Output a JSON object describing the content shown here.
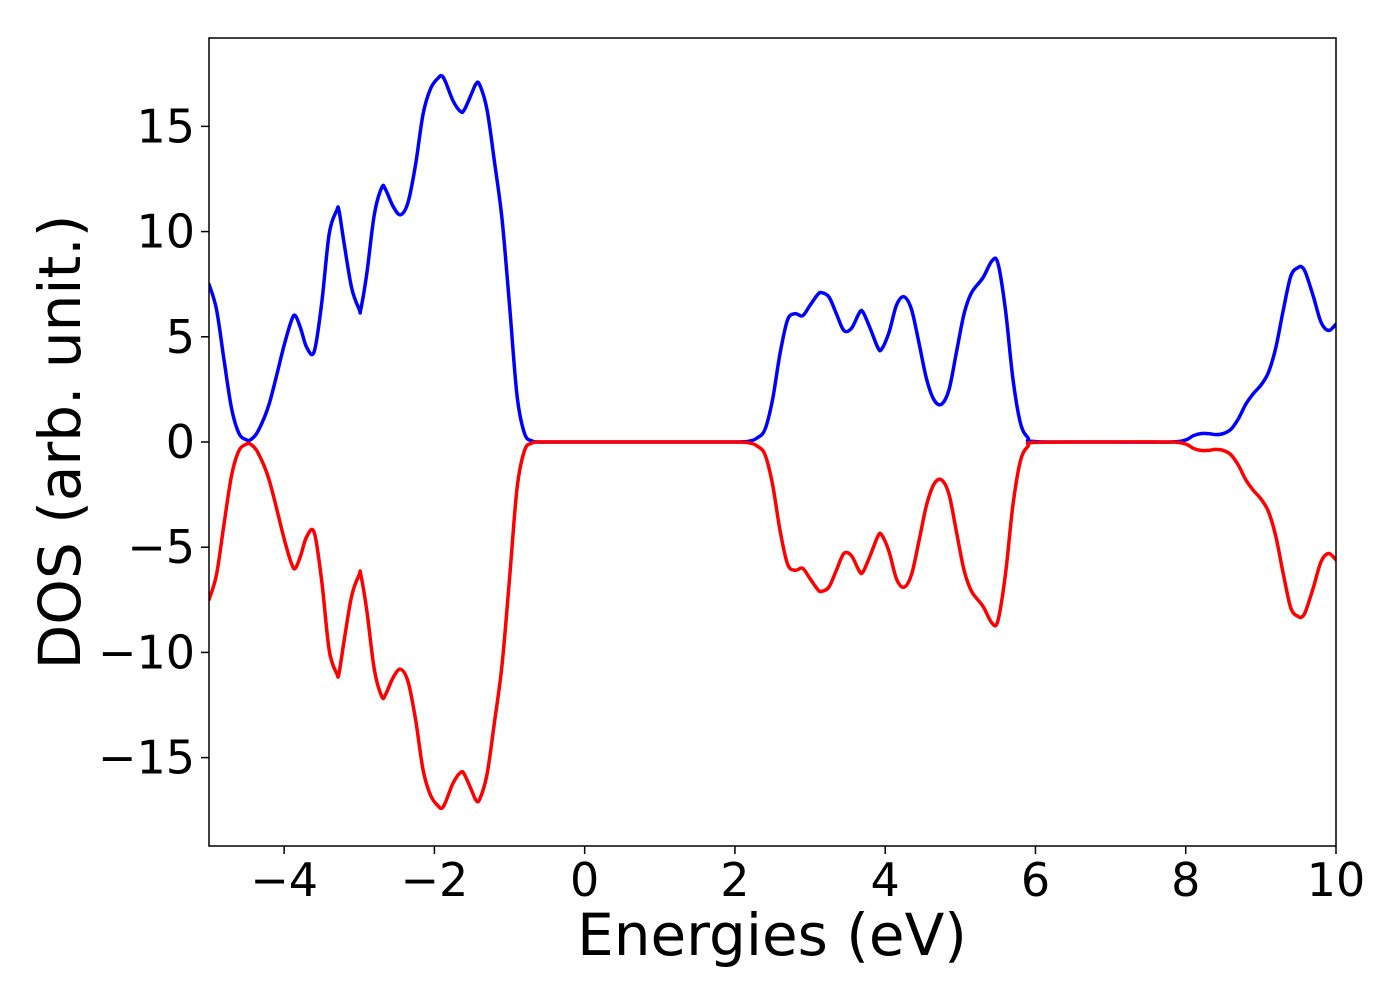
{
  "chart_data": {
    "type": "line",
    "title": "",
    "xlabel": "Energies (eV)",
    "ylabel": "DOS (arb. unit.)",
    "xlim": [
      -5,
      10
    ],
    "ylim": [
      -19.2,
      19.2
    ],
    "grid": false,
    "legend": "none",
    "xticks": [
      -4,
      -2,
      0,
      2,
      4,
      6,
      8,
      10
    ],
    "xtick_labels": [
      "−4",
      "−2",
      "0",
      "2",
      "4",
      "6",
      "8",
      "10"
    ],
    "yticks": [
      -15,
      -10,
      -5,
      0,
      5,
      10,
      15
    ],
    "ytick_labels": [
      "−15",
      "−10",
      "−5",
      "0",
      "5",
      "10",
      "15"
    ],
    "series": [
      {
        "color": "#0000ff",
        "x": [
          -5.0,
          -4.9,
          -4.8,
          -4.7,
          -4.6,
          -4.5,
          -4.45,
          -4.35,
          -4.2,
          -4.0,
          -3.9,
          -3.85,
          -3.78,
          -3.7,
          -3.6,
          -3.5,
          -3.4,
          -3.3,
          -3.27,
          -3.2,
          -3.1,
          -3.0,
          -2.98,
          -2.9,
          -2.8,
          -2.7,
          -2.65,
          -2.55,
          -2.45,
          -2.35,
          -2.25,
          -2.15,
          -2.05,
          -1.95,
          -1.9,
          -1.85,
          -1.75,
          -1.65,
          -1.6,
          -1.5,
          -1.45,
          -1.4,
          -1.3,
          -1.2,
          -1.1,
          -1.0,
          -0.9,
          -0.8,
          -0.7,
          -0.6,
          -0.5,
          0.0,
          1.0,
          2.0,
          2.2,
          2.3,
          2.4,
          2.5,
          2.6,
          2.7,
          2.8,
          2.9,
          3.0,
          3.1,
          3.15,
          3.25,
          3.35,
          3.45,
          3.55,
          3.65,
          3.7,
          3.8,
          3.9,
          3.95,
          4.05,
          4.15,
          4.25,
          4.35,
          4.45,
          4.55,
          4.65,
          4.75,
          4.85,
          4.95,
          5.05,
          5.15,
          5.3,
          5.42,
          5.5,
          5.6,
          5.7,
          5.8,
          5.9,
          6.0,
          7.0,
          7.8,
          8.0,
          8.1,
          8.2,
          8.3,
          8.4,
          8.5,
          8.6,
          8.7,
          8.8,
          8.9,
          9.0,
          9.1,
          9.2,
          9.3,
          9.4,
          9.5,
          9.55,
          9.6,
          9.7,
          9.8,
          9.9,
          10.0
        ],
        "y": [
          7.5,
          6.3,
          3.9,
          1.6,
          0.4,
          0.1,
          0.1,
          0.5,
          1.8,
          4.6,
          5.8,
          6.0,
          5.4,
          4.5,
          4.3,
          6.6,
          9.9,
          11.0,
          11.0,
          9.4,
          7.3,
          6.3,
          6.3,
          8.0,
          10.8,
          12.1,
          12.0,
          11.2,
          10.8,
          11.4,
          13.2,
          15.6,
          16.8,
          17.3,
          17.4,
          17.1,
          16.2,
          15.7,
          15.8,
          16.6,
          17.0,
          17.0,
          15.8,
          13.3,
          10.6,
          6.5,
          2.2,
          0.4,
          0.05,
          0.0,
          0.0,
          0.0,
          0.0,
          0.0,
          0.05,
          0.2,
          0.6,
          2.0,
          4.2,
          5.8,
          6.1,
          6.0,
          6.5,
          7.0,
          7.1,
          6.9,
          6.1,
          5.3,
          5.4,
          6.1,
          6.2,
          5.4,
          4.5,
          4.4,
          5.2,
          6.5,
          6.9,
          6.3,
          4.7,
          3.0,
          2.0,
          1.8,
          2.5,
          4.3,
          6.1,
          7.1,
          7.8,
          8.6,
          8.5,
          6.3,
          3.0,
          0.9,
          0.2,
          0.02,
          0.0,
          0.0,
          0.1,
          0.3,
          0.4,
          0.4,
          0.35,
          0.4,
          0.6,
          1.1,
          1.8,
          2.3,
          2.7,
          3.3,
          4.5,
          6.3,
          7.9,
          8.3,
          8.3,
          8.0,
          6.9,
          5.7,
          5.3,
          5.6
        ]
      },
      {
        "color": "#ff0000",
        "x": [
          -5.0,
          -4.9,
          -4.8,
          -4.7,
          -4.6,
          -4.5,
          -4.45,
          -4.35,
          -4.2,
          -4.0,
          -3.9,
          -3.85,
          -3.78,
          -3.7,
          -3.6,
          -3.5,
          -3.4,
          -3.3,
          -3.27,
          -3.2,
          -3.1,
          -3.0,
          -2.98,
          -2.9,
          -2.8,
          -2.7,
          -2.65,
          -2.55,
          -2.45,
          -2.35,
          -2.25,
          -2.15,
          -2.05,
          -1.95,
          -1.9,
          -1.85,
          -1.75,
          -1.65,
          -1.6,
          -1.5,
          -1.45,
          -1.4,
          -1.3,
          -1.2,
          -1.1,
          -1.0,
          -0.9,
          -0.8,
          -0.7,
          -0.6,
          -0.5,
          0.0,
          1.0,
          2.0,
          2.2,
          2.3,
          2.4,
          2.5,
          2.6,
          2.7,
          2.8,
          2.9,
          3.0,
          3.1,
          3.15,
          3.25,
          3.35,
          3.45,
          3.55,
          3.65,
          3.7,
          3.8,
          3.9,
          3.95,
          4.05,
          4.15,
          4.25,
          4.35,
          4.45,
          4.55,
          4.65,
          4.75,
          4.85,
          4.95,
          5.05,
          5.15,
          5.3,
          5.42,
          5.5,
          5.6,
          5.7,
          5.8,
          5.9,
          6.0,
          7.0,
          7.8,
          8.0,
          8.1,
          8.2,
          8.3,
          8.4,
          8.5,
          8.6,
          8.7,
          8.8,
          8.9,
          9.0,
          9.1,
          9.2,
          9.3,
          9.4,
          9.5,
          9.55,
          9.6,
          9.7,
          9.8,
          9.9,
          10.0
        ],
        "y": [
          -7.5,
          -6.3,
          -3.9,
          -1.6,
          -0.4,
          -0.1,
          -0.1,
          -0.5,
          -1.8,
          -4.6,
          -5.8,
          -6.0,
          -5.4,
          -4.5,
          -4.3,
          -6.6,
          -9.9,
          -11.0,
          -11.0,
          -9.4,
          -7.3,
          -6.3,
          -6.3,
          -8.0,
          -10.8,
          -12.1,
          -12.0,
          -11.2,
          -10.8,
          -11.4,
          -13.2,
          -15.6,
          -16.8,
          -17.3,
          -17.4,
          -17.1,
          -16.2,
          -15.7,
          -15.8,
          -16.6,
          -17.0,
          -17.0,
          -15.8,
          -13.3,
          -10.6,
          -6.5,
          -2.2,
          -0.4,
          -0.05,
          0.0,
          0.0,
          0.0,
          0.0,
          0.0,
          -0.05,
          -0.2,
          -0.6,
          -2.0,
          -4.2,
          -5.8,
          -6.1,
          -6.0,
          -6.5,
          -7.0,
          -7.1,
          -6.9,
          -6.1,
          -5.3,
          -5.4,
          -6.1,
          -6.2,
          -5.4,
          -4.5,
          -4.4,
          -5.2,
          -6.5,
          -6.9,
          -6.3,
          -4.7,
          -3.0,
          -2.0,
          -1.8,
          -2.5,
          -4.3,
          -6.1,
          -7.1,
          -7.8,
          -8.6,
          -8.5,
          -6.3,
          -3.0,
          -0.9,
          -0.2,
          -0.02,
          0.0,
          0.0,
          -0.1,
          -0.3,
          -0.4,
          -0.4,
          -0.35,
          -0.4,
          -0.6,
          -1.1,
          -1.8,
          -2.3,
          -2.7,
          -3.3,
          -4.5,
          -6.3,
          -7.9,
          -8.3,
          -8.3,
          -8.0,
          -6.9,
          -5.7,
          -5.3,
          -5.6
        ]
      }
    ]
  }
}
